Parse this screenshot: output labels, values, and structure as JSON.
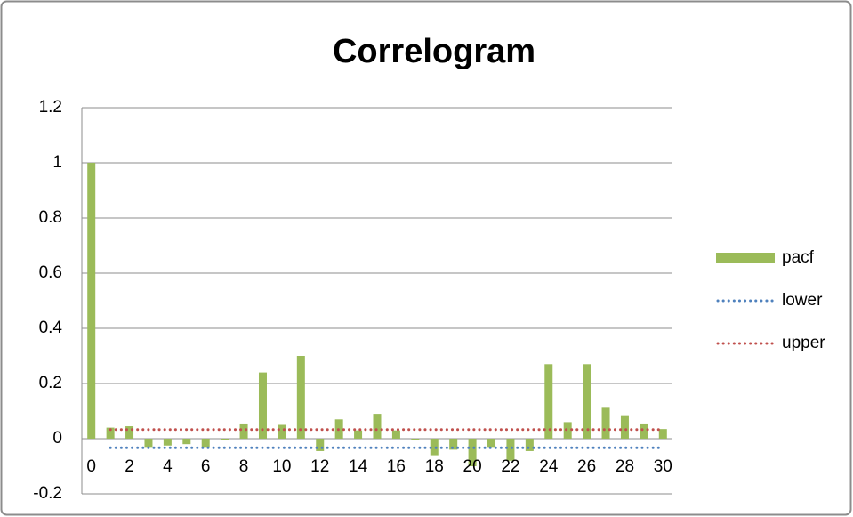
{
  "chart_data": {
    "type": "bar",
    "title": "Correlogram",
    "categories": [
      0,
      null,
      2,
      null,
      4,
      null,
      6,
      null,
      8,
      null,
      10,
      null,
      12,
      null,
      14,
      null,
      16,
      null,
      18,
      null,
      20,
      null,
      22,
      null,
      24,
      null,
      26,
      null,
      28,
      null,
      30
    ],
    "series": [
      {
        "name": "pacf",
        "type": "bar",
        "color": "#9bbb59",
        "values": [
          1.0,
          0.04,
          0.045,
          -0.03,
          -0.025,
          -0.02,
          -0.03,
          -0.005,
          0.055,
          0.24,
          0.05,
          0.3,
          -0.045,
          0.07,
          0.03,
          0.09,
          0.03,
          -0.005,
          -0.06,
          -0.04,
          -0.1,
          -0.03,
          -0.08,
          -0.045,
          0.27,
          0.06,
          0.27,
          0.115,
          0.085,
          0.055,
          0.035
        ]
      },
      {
        "name": "lower",
        "type": "line",
        "color": "#4f81bd",
        "values": [
          null,
          -0.033,
          -0.033,
          -0.033,
          -0.033,
          -0.033,
          -0.033,
          -0.033,
          -0.033,
          -0.033,
          -0.033,
          -0.033,
          -0.033,
          -0.033,
          -0.033,
          -0.033,
          -0.033,
          -0.033,
          -0.033,
          -0.033,
          -0.033,
          -0.033,
          -0.033,
          -0.033,
          -0.033,
          -0.033,
          -0.033,
          -0.033,
          -0.033,
          -0.033,
          -0.033
        ]
      },
      {
        "name": "upper",
        "type": "line",
        "color": "#c0504d",
        "values": [
          null,
          0.033,
          0.033,
          0.033,
          0.033,
          0.033,
          0.033,
          0.033,
          0.033,
          0.033,
          0.033,
          0.033,
          0.033,
          0.033,
          0.033,
          0.033,
          0.033,
          0.033,
          0.033,
          0.033,
          0.033,
          0.033,
          0.033,
          0.033,
          0.033,
          0.033,
          0.033,
          0.033,
          0.033,
          0.033,
          0.033
        ]
      }
    ],
    "ylim": [
      -0.2,
      1.2
    ],
    "yticks": [
      -0.2,
      0,
      0.2,
      0.4,
      0.6,
      0.8,
      1,
      1.2
    ],
    "grid": true,
    "legend": "right"
  }
}
